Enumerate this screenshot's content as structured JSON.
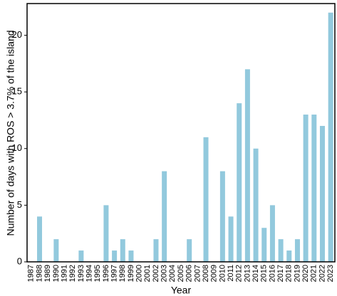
{
  "chart_data": {
    "type": "bar",
    "x_label": "Year",
    "y_label": "Number of days with ROS > 3.7% of the island",
    "categories": [
      "1987",
      "1988",
      "1989",
      "1990",
      "1991",
      "1992",
      "1993",
      "1994",
      "1995",
      "1996",
      "1997",
      "1998",
      "1999",
      "2000",
      "2001",
      "2002",
      "2003",
      "2004",
      "2005",
      "2006",
      "2007",
      "2008",
      "2009",
      "2010",
      "2011",
      "2012",
      "2013",
      "2014",
      "2015",
      "2016",
      "2017",
      "2018",
      "2019",
      "2020",
      "2021",
      "2022",
      "2023"
    ],
    "values": [
      0,
      4,
      0,
      2,
      0,
      0,
      1,
      0,
      0,
      5,
      1,
      2,
      1,
      0,
      0,
      2,
      8,
      0,
      0,
      2,
      0,
      11,
      0,
      8,
      4,
      14,
      17,
      10,
      3,
      5,
      2,
      1,
      2,
      13,
      13,
      12,
      22
    ],
    "color": "#92c9dd",
    "ylim": [
      0,
      22.8
    ],
    "yticks": [
      0,
      5,
      10,
      15,
      20
    ],
    "grid": false
  }
}
